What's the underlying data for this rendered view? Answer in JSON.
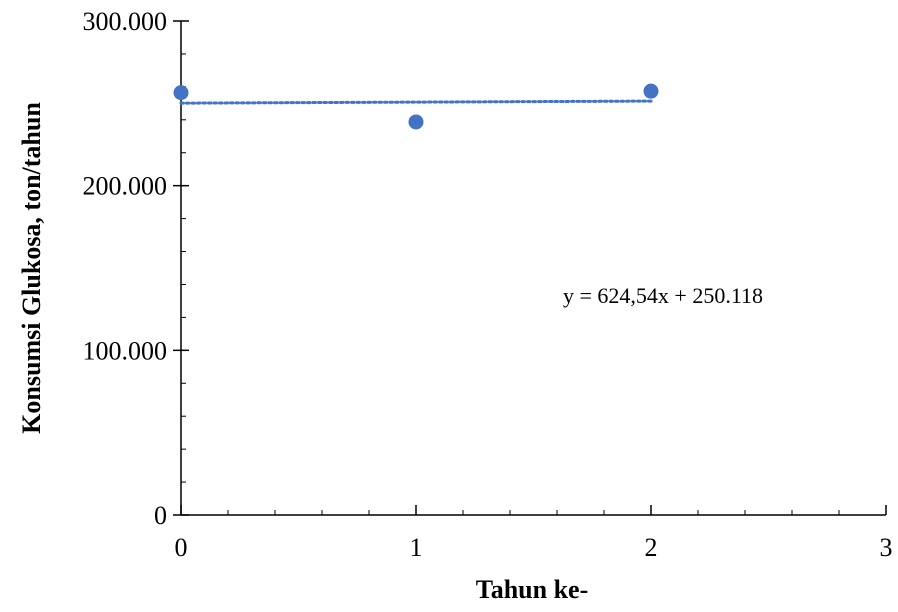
{
  "chart_data": {
    "type": "scatter",
    "xlabel": "Tahun ke-",
    "ylabel": "Konsumsi Glukosa, ton/tahun",
    "xlim": [
      0,
      3
    ],
    "ylim": [
      0,
      300000
    ],
    "x_ticks": [
      0,
      1,
      2,
      3
    ],
    "x_tick_labels": [
      "0",
      "1",
      "2",
      "3"
    ],
    "y_ticks": [
      0,
      100000,
      200000,
      300000
    ],
    "y_tick_labels": [
      "0",
      "100.000",
      "200.000",
      "300.000"
    ],
    "x_minor_step": 0.2,
    "y_minor_step": 20000,
    "grid": false,
    "series": [
      {
        "x": [
          0,
          1,
          2
        ],
        "y": [
          256500,
          238700,
          257400
        ],
        "color": "#4472C4"
      }
    ],
    "trendline": {
      "type": "linear",
      "slope": 624.54,
      "intercept": 250118,
      "x_range": [
        0,
        2
      ],
      "color": "#4472C4",
      "style": "dotted",
      "equation_label": "y = 624,54x + 250.118"
    }
  }
}
